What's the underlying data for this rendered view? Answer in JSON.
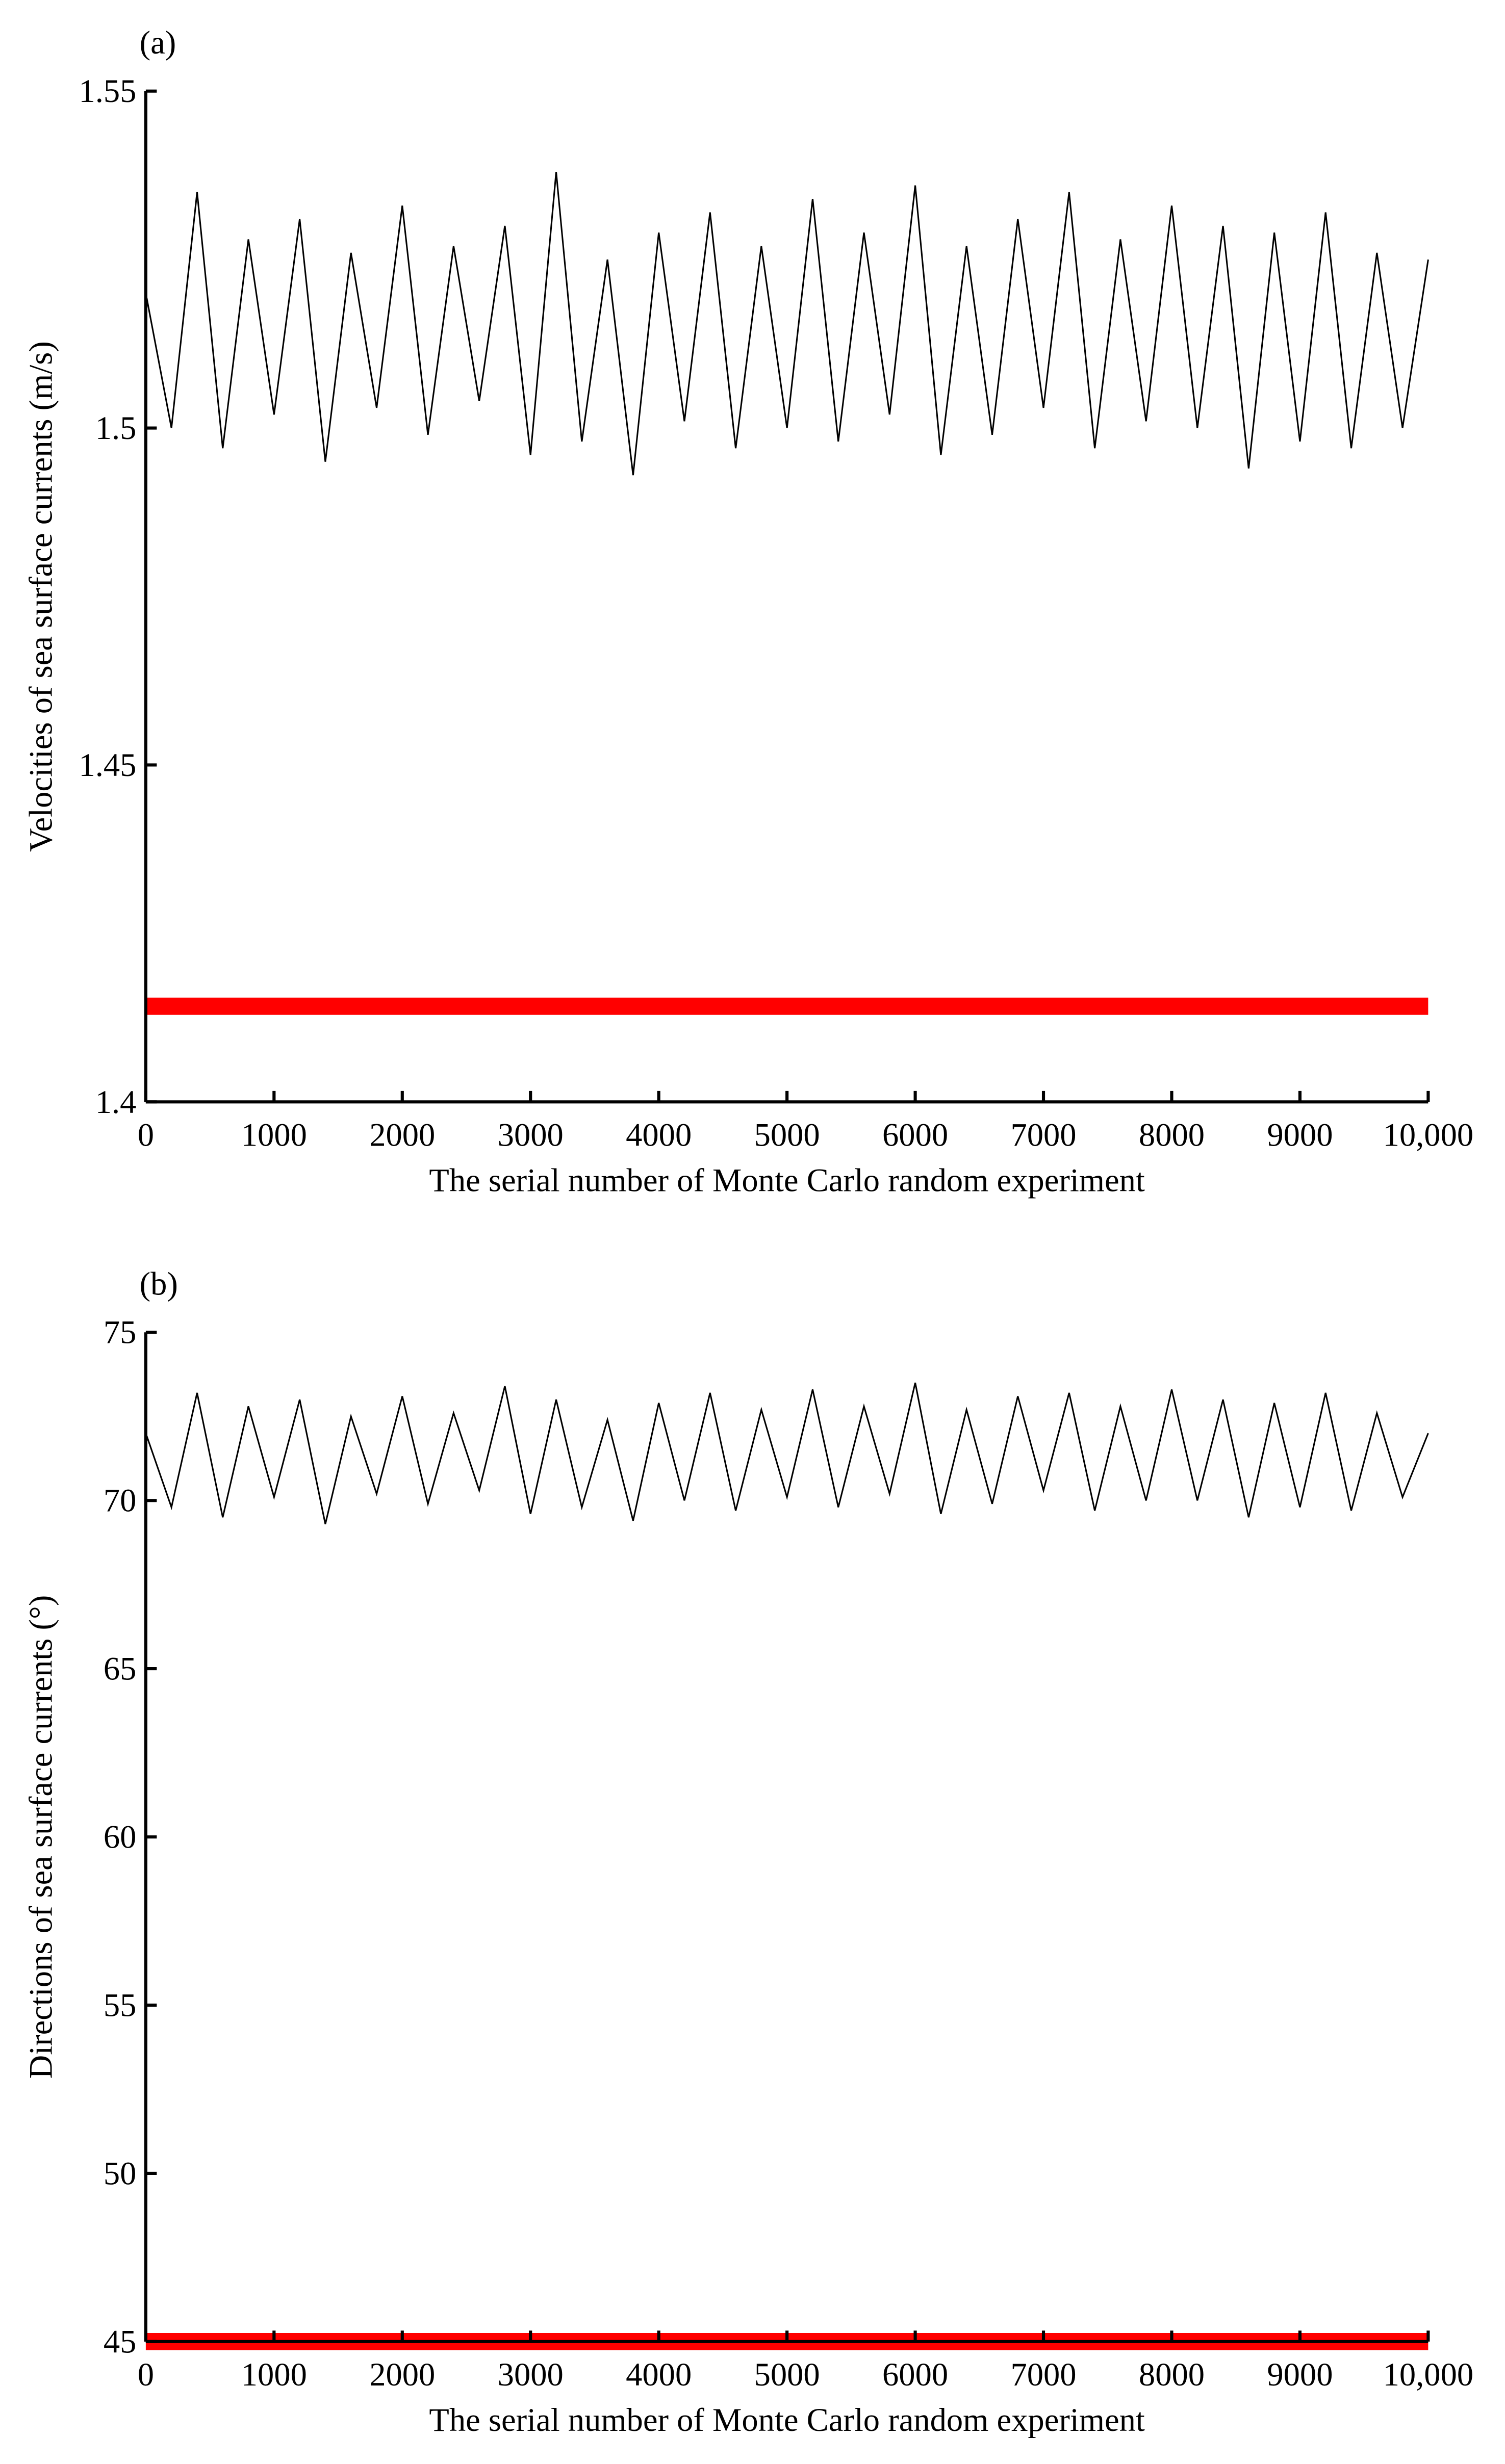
{
  "chart_data": [
    {
      "type": "line",
      "panel_label": "(a)",
      "x_label": "The serial number of Monte Carlo random experiment",
      "y_label": "Velocities of sea surface currents (m/s)",
      "xlim": [
        0,
        10000
      ],
      "ylim": [
        1.4,
        1.55
      ],
      "xticks": [
        0,
        1000,
        2000,
        3000,
        4000,
        5000,
        6000,
        7000,
        8000,
        9000,
        {
          "value": 10000,
          "label": "10,000"
        }
      ],
      "yticks": [
        1.4,
        1.45,
        1.5,
        1.55
      ],
      "series": [
        {
          "color": "#000000",
          "x": [
            0,
            200,
            400,
            600,
            800,
            1000,
            1200,
            1400,
            1600,
            1800,
            2000,
            2200,
            2400,
            2600,
            2800,
            3000,
            3200,
            3400,
            3600,
            3800,
            4000,
            4200,
            4400,
            4600,
            4800,
            5000,
            5200,
            5400,
            5600,
            5800,
            6000,
            6200,
            6400,
            6600,
            6800,
            7000,
            7200,
            7400,
            7600,
            7800,
            8000,
            8200,
            8400,
            8600,
            8800,
            9000,
            9200,
            9400,
            9600,
            9800,
            10000
          ],
          "values": [
            1.52,
            1.5,
            1.535,
            1.497,
            1.528,
            1.502,
            1.531,
            1.495,
            1.526,
            1.503,
            1.533,
            1.499,
            1.527,
            1.504,
            1.53,
            1.496,
            1.538,
            1.498,
            1.525,
            1.493,
            1.529,
            1.501,
            1.532,
            1.497,
            1.527,
            1.5,
            1.534,
            1.498,
            1.529,
            1.502,
            1.536,
            1.496,
            1.527,
            1.499,
            1.531,
            1.503,
            1.535,
            1.497,
            1.528,
            1.501,
            1.533,
            1.5,
            1.53,
            1.494,
            1.529,
            1.498,
            1.532,
            1.497,
            1.526,
            1.5,
            1.525
          ]
        },
        {
          "color": "#ff0000",
          "x": [
            0,
            10000
          ],
          "values": [
            1.4142,
            1.4142
          ]
        }
      ]
    },
    {
      "type": "line",
      "panel_label": "(b)",
      "x_label": "The serial number of Monte Carlo random experiment",
      "y_label": "Directions of sea surface currents (°)",
      "xlim": [
        0,
        10000
      ],
      "ylim": [
        45,
        75
      ],
      "xticks": [
        0,
        1000,
        2000,
        3000,
        4000,
        5000,
        6000,
        7000,
        8000,
        9000,
        {
          "value": 10000,
          "label": "10,000"
        }
      ],
      "yticks": [
        45,
        50,
        55,
        60,
        65,
        70,
        75
      ],
      "series": [
        {
          "color": "#000000",
          "x": [
            0,
            200,
            400,
            600,
            800,
            1000,
            1200,
            1400,
            1600,
            1800,
            2000,
            2200,
            2400,
            2600,
            2800,
            3000,
            3200,
            3400,
            3600,
            3800,
            4000,
            4200,
            4400,
            4600,
            4800,
            5000,
            5200,
            5400,
            5600,
            5800,
            6000,
            6200,
            6400,
            6600,
            6800,
            7000,
            7200,
            7400,
            7600,
            7800,
            8000,
            8200,
            8400,
            8600,
            8800,
            9000,
            9200,
            9400,
            9600,
            9800,
            10000
          ],
          "values": [
            72.0,
            69.8,
            73.2,
            69.5,
            72.8,
            70.1,
            73.0,
            69.3,
            72.5,
            70.2,
            73.1,
            69.9,
            72.6,
            70.3,
            73.4,
            69.6,
            73.0,
            69.8,
            72.4,
            69.4,
            72.9,
            70.0,
            73.2,
            69.7,
            72.7,
            70.1,
            73.3,
            69.8,
            72.8,
            70.2,
            73.5,
            69.6,
            72.7,
            69.9,
            73.1,
            70.3,
            73.2,
            69.7,
            72.8,
            70.0,
            73.3,
            70.0,
            73.0,
            69.5,
            72.9,
            69.8,
            73.2,
            69.7,
            72.6,
            70.1,
            72.0
          ]
        },
        {
          "color": "#ff0000",
          "x": [
            0,
            10000
          ],
          "values": [
            45,
            45
          ]
        }
      ]
    }
  ]
}
